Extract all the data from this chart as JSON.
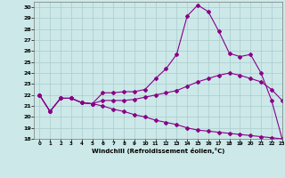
{
  "xlabel": "Windchill (Refroidissement éolien,°C)",
  "xlim": [
    -0.5,
    23
  ],
  "ylim": [
    18,
    30.5
  ],
  "xticks": [
    0,
    1,
    2,
    3,
    4,
    5,
    6,
    7,
    8,
    9,
    10,
    11,
    12,
    13,
    14,
    15,
    16,
    17,
    18,
    19,
    20,
    21,
    22,
    23
  ],
  "yticks": [
    18,
    19,
    20,
    21,
    22,
    23,
    24,
    25,
    26,
    27,
    28,
    29,
    30
  ],
  "background_color": "#cce8e8",
  "grid_color": "#aacccc",
  "line_color": "#880088",
  "line1_y": [
    22.0,
    20.5,
    21.7,
    21.7,
    21.3,
    21.2,
    22.2,
    22.2,
    22.3,
    22.3,
    22.5,
    23.5,
    24.4,
    25.7,
    29.2,
    30.2,
    29.6,
    27.8,
    25.8,
    25.5,
    25.7,
    24.0,
    21.5,
    18.0
  ],
  "line2_y": [
    22.0,
    20.5,
    21.7,
    21.7,
    21.3,
    21.2,
    21.5,
    21.5,
    21.5,
    21.6,
    21.8,
    22.0,
    22.2,
    22.4,
    22.8,
    23.2,
    23.5,
    23.8,
    24.0,
    23.8,
    23.5,
    23.2,
    22.5,
    21.5
  ],
  "line3_y": [
    22.0,
    20.5,
    21.7,
    21.7,
    21.3,
    21.2,
    21.0,
    20.7,
    20.5,
    20.2,
    20.0,
    19.7,
    19.5,
    19.3,
    19.0,
    18.8,
    18.7,
    18.6,
    18.5,
    18.4,
    18.3,
    18.2,
    18.1,
    18.0
  ]
}
